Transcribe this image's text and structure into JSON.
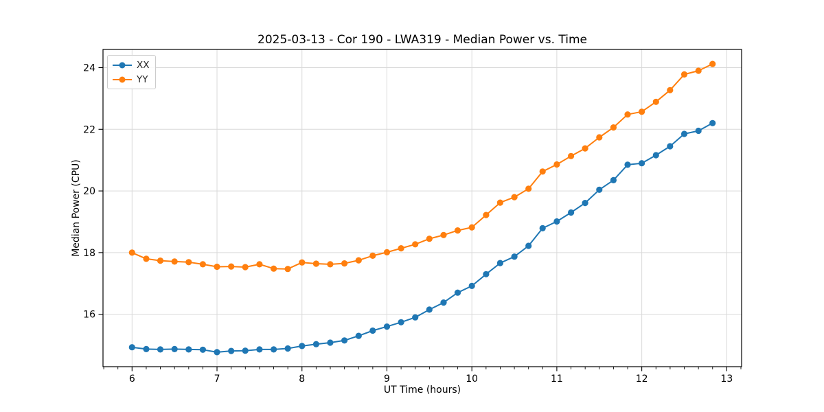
{
  "title": "2025-03-13 - Cor 190 - LWA319 - Median Power vs. Time",
  "colors": {
    "series_xx": "#1f77b4",
    "series_yy": "#ff7f0e",
    "grid": "#d9d9d9",
    "spine": "#000000",
    "tick_text": "#000000",
    "legend_border": "#cccccc"
  },
  "chart_data": {
    "type": "line",
    "title": "2025-03-13 - Cor 190 - LWA319 - Median Power vs. Time",
    "xlabel": "UT Time (hours)",
    "ylabel": "Median Power (CPU)",
    "xlim": [
      5.658,
      13.175
    ],
    "ylim": [
      14.3,
      24.59
    ],
    "x_ticks": [
      6,
      7,
      8,
      9,
      10,
      11,
      12,
      13
    ],
    "y_ticks": [
      16,
      18,
      20,
      22,
      24
    ],
    "x_minor_step": 0.16667,
    "grid": true,
    "legend_position": "upper-left",
    "marker": "o",
    "x": [
      6,
      6.167,
      6.333,
      6.5,
      6.667,
      6.833,
      7,
      7.167,
      7.333,
      7.5,
      7.667,
      7.833,
      8,
      8.167,
      8.333,
      8.5,
      8.667,
      8.833,
      9,
      9.167,
      9.333,
      9.5,
      9.667,
      9.833,
      10,
      10.167,
      10.333,
      10.5,
      10.667,
      10.833,
      11,
      11.167,
      11.333,
      11.5,
      11.667,
      11.833,
      12,
      12.167,
      12.333,
      12.5,
      12.667,
      12.833
    ],
    "series": [
      {
        "name": "XX",
        "color": "#1f77b4",
        "values": [
          14.93,
          14.87,
          14.86,
          14.87,
          14.86,
          14.85,
          14.77,
          14.81,
          14.82,
          14.86,
          14.86,
          14.89,
          14.97,
          15.03,
          15.08,
          15.15,
          15.3,
          15.47,
          15.6,
          15.74,
          15.9,
          16.15,
          16.38,
          16.7,
          16.92,
          17.3,
          17.66,
          17.87,
          18.22,
          18.79,
          19.01,
          19.3,
          19.61,
          20.04,
          20.35,
          20.85,
          20.9,
          21.16,
          21.45,
          21.85,
          21.95,
          22.2
        ]
      },
      {
        "name": "YY",
        "color": "#ff7f0e",
        "values": [
          18.0,
          17.8,
          17.74,
          17.71,
          17.69,
          17.62,
          17.54,
          17.55,
          17.53,
          17.62,
          17.48,
          17.47,
          17.68,
          17.64,
          17.62,
          17.65,
          17.75,
          17.9,
          18.01,
          18.14,
          18.27,
          18.45,
          18.57,
          18.72,
          18.82,
          19.22,
          19.62,
          19.8,
          20.07,
          20.63,
          20.86,
          21.13,
          21.38,
          21.74,
          22.06,
          22.48,
          22.57,
          22.89,
          23.27,
          23.78,
          23.9,
          24.12
        ]
      }
    ]
  }
}
